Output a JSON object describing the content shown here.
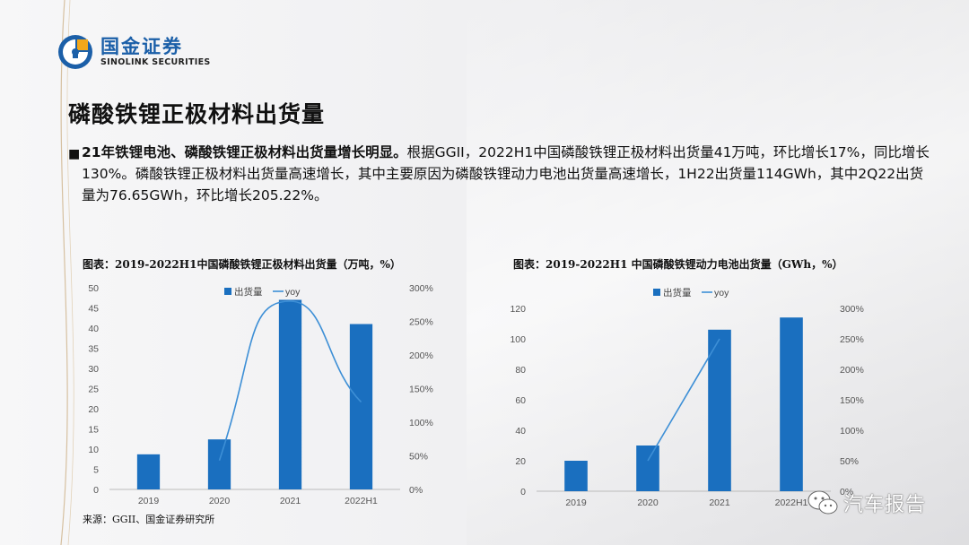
{
  "brand": {
    "name_cn": "国金证券",
    "name_en": "SINOLINK SECURITIES"
  },
  "page_title": "磷酸铁锂正极材料出货量",
  "summary": {
    "bold": "21年铁锂电池、磷酸铁锂正极材料出货量增长明显。",
    "text": "根据GGII，2022H1中国磷酸铁锂正极材料出货量41万吨，环比增长17%，同比增长130%。磷酸铁锂正极材料出货量高速增长，其中主要原因为磷酸铁锂动力电池出货量高速增长，1H22出货量114GWh，其中2Q22出货量为76.65GWh，环比增长205.22%。"
  },
  "source": "来源：GGII、国金证券研究所",
  "watermark": "汽车报告",
  "colors": {
    "bar": "#1a6fbf",
    "line": "#3d8fd6",
    "brand": "#1b5fa8"
  },
  "chart_data": [
    {
      "type": "bar",
      "title": "图表：2019-2022H1中国磷酸铁锂正极材料出货量（万吨，%）",
      "categories": [
        "2019",
        "2020",
        "2021",
        "2022H1"
      ],
      "series": [
        {
          "name": "出货量",
          "type": "bar",
          "axis": "left",
          "values": [
            8.7,
            12.4,
            47.0,
            41.0
          ]
        },
        {
          "name": "yoy",
          "type": "line",
          "axis": "right",
          "values": [
            null,
            43,
            280,
            130
          ]
        }
      ],
      "ylim": [
        0,
        50
      ],
      "yticks": [
        0,
        5,
        10,
        15,
        20,
        25,
        30,
        35,
        40,
        45,
        50
      ],
      "y2lim": [
        0,
        300
      ],
      "y2ticks": [
        0,
        50,
        100,
        150,
        200,
        250,
        300
      ],
      "y2_format": "percent",
      "legend": "top-center",
      "grid": false
    },
    {
      "type": "bar",
      "title": "图表：2019-2022H1 中国磷酸铁锂动力电池出货量（GWh，%）",
      "categories": [
        "2019",
        "2020",
        "2021",
        "2022H1"
      ],
      "series": [
        {
          "name": "出货量",
          "type": "bar",
          "axis": "left",
          "values": [
            20,
            30,
            106,
            114
          ]
        },
        {
          "name": "yoy",
          "type": "line",
          "axis": "right",
          "values": [
            null,
            50,
            250,
            null
          ]
        }
      ],
      "ylim": [
        0,
        120
      ],
      "yticks": [
        0,
        20,
        40,
        60,
        80,
        100,
        120
      ],
      "y2lim": [
        0,
        300
      ],
      "y2ticks": [
        0,
        50,
        100,
        150,
        200,
        250,
        300
      ],
      "y2_format": "percent",
      "legend": "top-center",
      "grid": false
    }
  ]
}
